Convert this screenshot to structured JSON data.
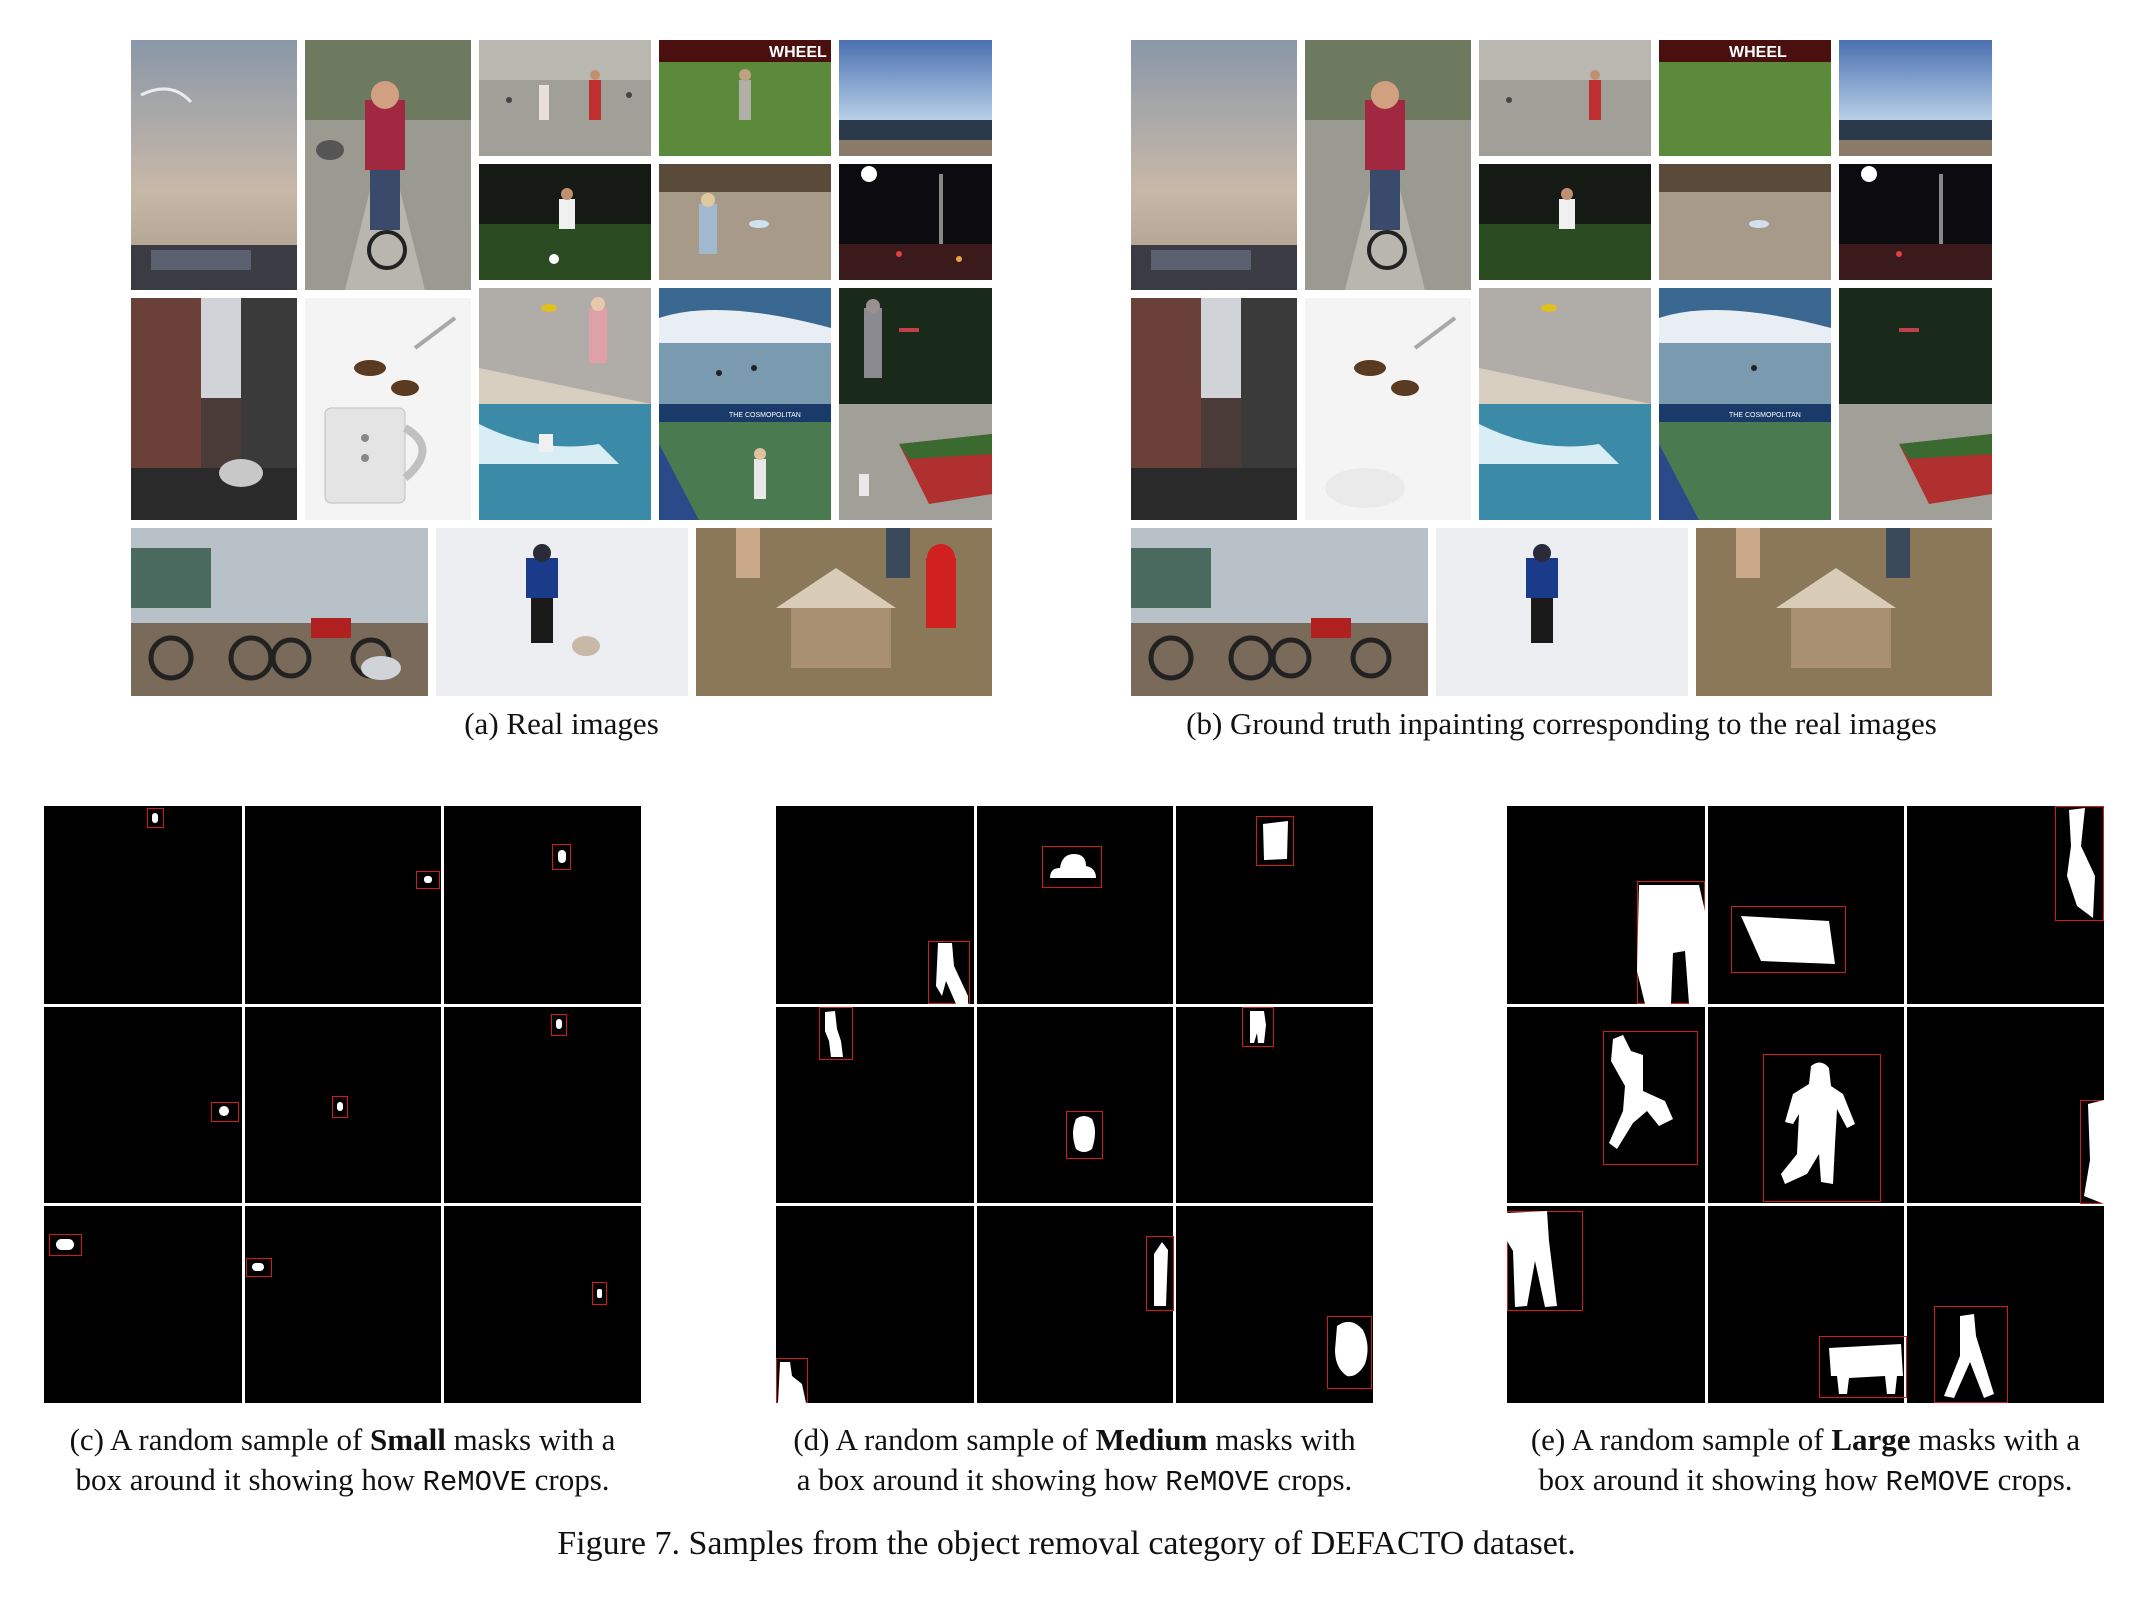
{
  "figure": {
    "panel_a_caption": "(a) Real images",
    "panel_b_caption": "(b) Ground truth inpainting corresponding to the real images",
    "panel_c_caption": {
      "pre": "(c) A random sample of ",
      "bold": "Small",
      "mid": " masks with a",
      "line2_pre": "box around it showing how ",
      "code": "ReMOVE",
      "line2_post": " crops."
    },
    "panel_d_caption": {
      "pre": "(d) A random sample of ",
      "bold": "Medium",
      "mid": " masks with",
      "line2_pre": "a box around it showing how ",
      "code": "ReMOVE",
      "line2_post": " crops."
    },
    "panel_e_caption": {
      "pre": "(e) A random sample of ",
      "bold": "Large",
      "mid": " masks with a",
      "line2_pre": "box around it showing how ",
      "code": "ReMOVE",
      "line2_post": " crops."
    },
    "main_caption": "Figure 7. Samples from the object removal category of DEFACTO dataset.",
    "photo_text": {
      "wheel": "WHEEL",
      "cosmopolitan": "THE COSMOPOLITAN"
    }
  },
  "colors": {
    "mask_background": "#000000",
    "mask_foreground": "#ffffff",
    "crop_box": "#d21a1a"
  }
}
